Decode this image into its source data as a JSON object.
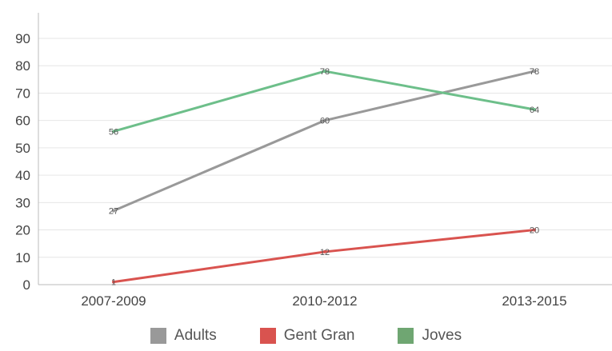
{
  "chart_data": {
    "type": "line",
    "categories": [
      "2007-2009",
      "2010-2012",
      "2013-2015"
    ],
    "series": [
      {
        "name": "Adults",
        "values": [
          27,
          60,
          78
        ],
        "color": "#999999"
      },
      {
        "name": "Gent Gran",
        "values": [
          1,
          12,
          20
        ],
        "color": "#d9534f"
      },
      {
        "name": "Joves",
        "values": [
          56,
          78,
          64
        ],
        "color": "#6dbf8a"
      }
    ],
    "legend_colors": [
      "#999999",
      "#d9534f",
      "#6fa672"
    ],
    "ylim": [
      0,
      90
    ],
    "yticks": [
      0,
      10,
      20,
      30,
      40,
      50,
      60,
      70,
      80,
      90
    ],
    "grid": true,
    "legend_position": "bottom-center",
    "title": "",
    "xlabel": "",
    "ylabel": ""
  }
}
